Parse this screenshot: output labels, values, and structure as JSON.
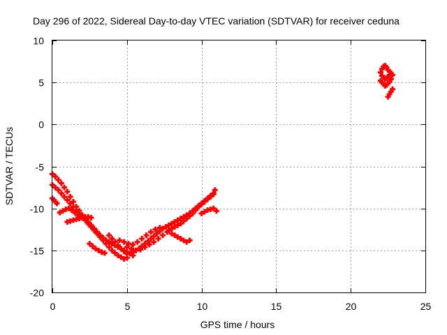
{
  "chart_data": {
    "type": "scatter",
    "title": "Day 296 of 2022, Sidereal Day-to-day VTEC variation (SDTVAR) for receiver ceduna",
    "xlabel": "GPS time / hours",
    "ylabel": "SDTVAR / TECUs",
    "xlim": [
      0,
      25
    ],
    "ylim": [
      -20,
      10
    ],
    "xticks": [
      0,
      5,
      10,
      15,
      20,
      25
    ],
    "yticks": [
      -20,
      -15,
      -10,
      -5,
      0,
      5,
      10
    ],
    "xtick_labels": [
      "0",
      "5",
      "10",
      "15",
      "20",
      "25"
    ],
    "ytick_labels": [
      "-20",
      "-15",
      "-10",
      "-5",
      "0",
      "5",
      "10"
    ],
    "grid": true,
    "marker": "plus",
    "series": [
      {
        "name": "SDTVAR",
        "color": "#ff0000",
        "x": [
          0.0,
          0.2,
          0.4,
          0.6,
          0.8,
          1.0,
          1.2,
          1.4,
          1.6,
          1.8,
          2.0,
          2.2,
          2.4,
          2.6,
          2.8,
          3.0,
          3.2,
          3.4,
          3.6,
          3.8,
          4.0,
          4.2,
          4.4,
          4.6,
          4.8,
          5.0,
          5.2,
          5.4,
          0.0,
          0.2,
          0.4,
          0.6,
          0.8,
          1.0,
          1.2,
          1.4,
          1.6,
          1.8,
          2.0,
          2.2,
          2.4,
          2.6,
          2.8,
          3.0,
          3.2,
          3.4,
          3.6,
          3.8,
          4.0,
          4.2,
          4.4,
          4.6,
          4.8,
          5.0,
          0.0,
          0.1,
          0.2,
          0.3,
          0.5,
          0.7,
          0.9,
          1.1,
          1.3,
          1.5,
          1.7,
          1.0,
          1.2,
          1.4,
          1.6,
          1.8,
          2.0,
          2.2,
          2.4,
          2.6,
          2.5,
          2.7,
          2.9,
          3.1,
          3.3,
          3.5,
          3.8,
          4.0,
          4.2,
          4.4,
          4.6,
          4.8,
          5.0,
          5.2,
          5.4,
          5.6,
          5.8,
          6.0,
          6.2,
          6.4,
          6.6,
          6.8,
          7.0,
          7.2,
          7.4,
          5.0,
          5.3,
          5.6,
          5.9,
          6.2,
          6.5,
          6.8,
          7.1,
          7.4,
          7.7,
          4.5,
          4.8,
          5.1,
          5.4,
          5.7,
          6.0,
          6.3,
          6.6,
          6.9,
          7.2,
          7.6,
          7.8,
          8.0,
          8.2,
          8.4,
          8.6,
          8.8,
          9.0,
          9.2,
          9.4,
          9.6,
          9.8,
          10.0,
          10.2,
          10.4,
          10.6,
          10.8,
          10.9,
          7.8,
          8.0,
          8.2,
          8.4,
          8.6,
          8.8,
          9.0,
          9.2,
          9.4,
          9.6,
          9.8,
          10.0,
          10.2,
          10.4,
          10.6,
          10.8,
          8.0,
          8.2,
          8.4,
          8.6,
          8.8,
          9.0,
          9.2,
          10.0,
          10.2,
          10.4,
          10.6,
          10.8,
          11.0,
          22.0,
          22.1,
          22.2,
          22.3,
          22.4,
          22.5,
          22.6,
          22.7,
          22.8,
          22.0,
          22.1,
          22.2,
          22.3,
          22.4,
          22.5,
          22.6,
          22.7,
          22.1,
          22.2,
          22.3,
          22.4,
          22.5,
          22.6,
          22.5,
          22.6,
          22.7,
          22.8
        ],
        "y": [
          -5.9,
          -6.2,
          -6.6,
          -7.0,
          -7.5,
          -8.0,
          -8.6,
          -9.2,
          -9.8,
          -10.3,
          -10.8,
          -11.2,
          -11.6,
          -12.0,
          -12.4,
          -12.8,
          -13.2,
          -13.5,
          -13.8,
          -14.0,
          -14.2,
          -14.4,
          -14.6,
          -14.8,
          -15.0,
          -15.2,
          -15.4,
          -15.6,
          -7.2,
          -7.5,
          -7.8,
          -8.2,
          -8.6,
          -9.0,
          -9.4,
          -9.8,
          -10.2,
          -10.6,
          -11.0,
          -11.4,
          -11.8,
          -12.2,
          -12.6,
          -13.0,
          -13.4,
          -13.8,
          -14.2,
          -14.6,
          -15.0,
          -15.3,
          -15.6,
          -15.8,
          -16.0,
          -15.9,
          -8.8,
          -9.0,
          -9.2,
          -9.4,
          -10.5,
          -10.3,
          -10.1,
          -10.0,
          -10.2,
          -10.5,
          -10.8,
          -11.6,
          -11.5,
          -11.4,
          -11.3,
          -11.2,
          -11.1,
          -11.0,
          -11.0,
          -11.1,
          -14.2,
          -14.5,
          -14.8,
          -15.0,
          -15.2,
          -15.3,
          -13.2,
          -13.6,
          -14.0,
          -14.4,
          -14.8,
          -15.1,
          -15.4,
          -15.3,
          -15.2,
          -15.0,
          -14.8,
          -14.5,
          -14.2,
          -13.9,
          -13.6,
          -13.3,
          -13.0,
          -12.7,
          -12.4,
          -14.6,
          -14.8,
          -15.0,
          -14.9,
          -14.6,
          -14.3,
          -14.0,
          -13.6,
          -13.2,
          -12.8,
          -13.8,
          -14.0,
          -14.2,
          -14.3,
          -14.0,
          -13.6,
          -13.2,
          -12.8,
          -12.5,
          -12.3,
          -12.2,
          -12.0,
          -11.8,
          -11.6,
          -11.4,
          -11.2,
          -11.0,
          -10.8,
          -10.6,
          -10.3,
          -10.0,
          -9.7,
          -9.4,
          -9.1,
          -8.8,
          -8.5,
          -8.2,
          -7.8,
          -12.6,
          -12.4,
          -12.2,
          -12.0,
          -11.8,
          -11.5,
          -11.2,
          -10.9,
          -10.6,
          -10.2,
          -9.8,
          -9.5,
          -9.2,
          -8.9,
          -8.6,
          -8.3,
          -13.0,
          -13.2,
          -13.4,
          -13.6,
          -13.8,
          -14.0,
          -13.8,
          -10.6,
          -10.4,
          -10.2,
          -10.1,
          -10.0,
          -10.3,
          6.2,
          6.6,
          6.9,
          7.0,
          6.8,
          6.5,
          6.3,
          6.1,
          5.9,
          5.2,
          5.0,
          4.8,
          4.6,
          4.7,
          4.9,
          5.1,
          5.4,
          5.8,
          5.6,
          5.4,
          5.5,
          5.7,
          5.9,
          3.3,
          3.6,
          3.9,
          4.2
        ]
      }
    ]
  }
}
